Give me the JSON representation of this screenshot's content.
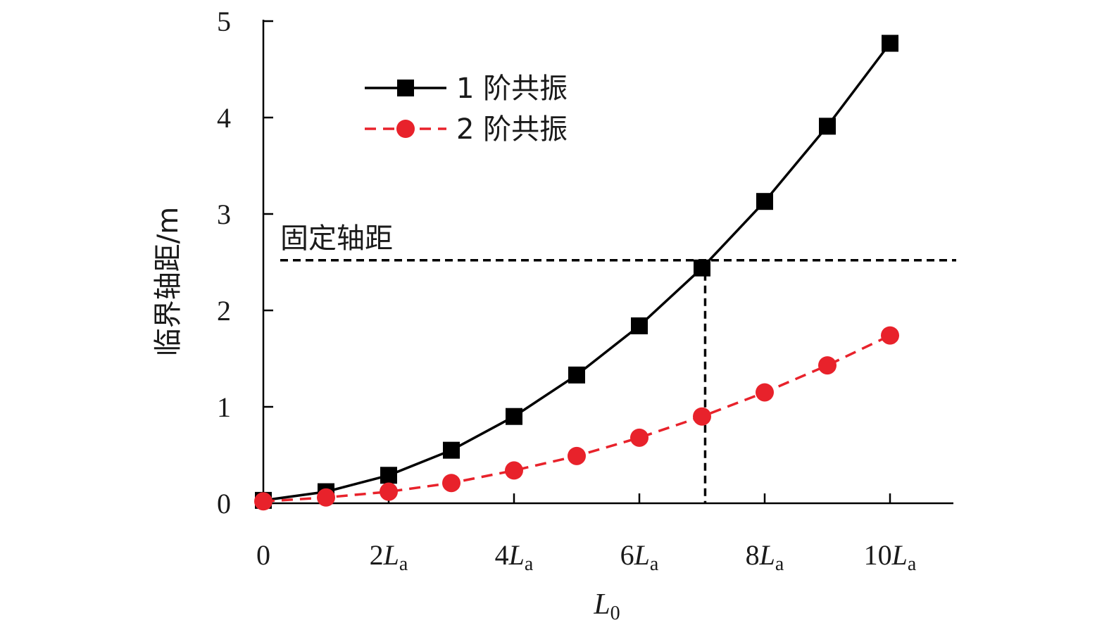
{
  "chart_data": {
    "type": "line",
    "xlabel": {
      "main": "L",
      "sub": "0"
    },
    "ylabel": "临界轴距/m",
    "ylim": [
      0,
      5
    ],
    "yticks": [
      0,
      1,
      2,
      3,
      4,
      5
    ],
    "xlim": [
      0,
      10
    ],
    "xticks": [
      {
        "x": 0,
        "coef": "0",
        "main": "",
        "sub": ""
      },
      {
        "x": 2,
        "coef": "2",
        "main": "L",
        "sub": "a"
      },
      {
        "x": 4,
        "coef": "4",
        "main": "L",
        "sub": "a"
      },
      {
        "x": 6,
        "coef": "6",
        "main": "L",
        "sub": "a"
      },
      {
        "x": 8,
        "coef": "8",
        "main": "L",
        "sub": "a"
      },
      {
        "x": 10,
        "coef": "10",
        "main": "L",
        "sub": "a"
      }
    ],
    "x": [
      0,
      1,
      2,
      3,
      4,
      5,
      6,
      7,
      8,
      9,
      10
    ],
    "series": [
      {
        "name": "1 阶共振",
        "color": "#000000",
        "marker": "square",
        "line": "solid",
        "values": [
          0.03,
          0.12,
          0.29,
          0.55,
          0.9,
          1.33,
          1.84,
          2.44,
          3.13,
          3.91,
          4.77
        ]
      },
      {
        "name": "2 阶共振",
        "color": "#e8222b",
        "marker": "circle",
        "line": "dashed",
        "values": [
          0.02,
          0.06,
          0.12,
          0.21,
          0.34,
          0.49,
          0.68,
          0.9,
          1.15,
          1.43,
          1.74
        ]
      }
    ],
    "reference_line": {
      "label": "固定轴距",
      "y": 2.52,
      "x_intersect": 7.05
    },
    "grid": false,
    "legend_position": "top-left"
  }
}
